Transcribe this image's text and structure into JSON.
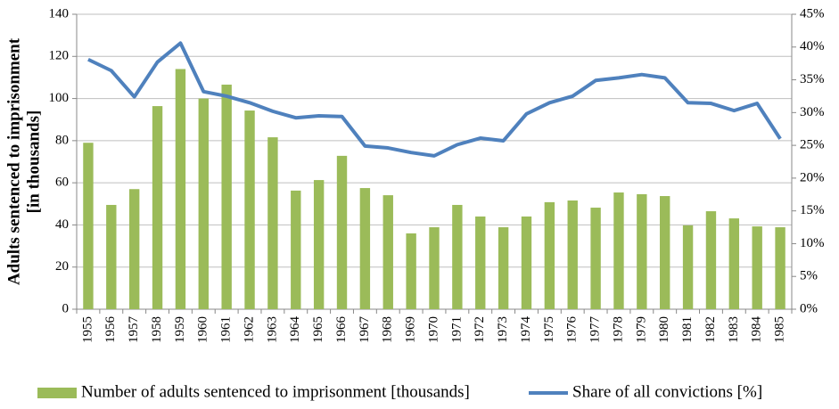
{
  "chart_data": {
    "type": "bar_line",
    "ylabel": [
      "Adults sentenced to imprisonment",
      "[in thousands]"
    ],
    "categories": [
      "1955",
      "1956",
      "1957",
      "1958",
      "1959",
      "1960",
      "1961",
      "1962",
      "1963",
      "1964",
      "1965",
      "1966",
      "1967",
      "1968",
      "1969",
      "1970",
      "1971",
      "1972",
      "1973",
      "1974",
      "1975",
      "1976",
      "1977",
      "1978",
      "1979",
      "1980",
      "1981",
      "1982",
      "1983",
      "1984",
      "1985"
    ],
    "series": [
      {
        "name": "Number of adults sentenced to imprisonment [thousands]",
        "type": "bar",
        "color": "#9bbb59",
        "values": [
          79,
          49.5,
          57,
          96.4,
          114,
          100,
          106.6,
          94.3,
          81.6,
          56.3,
          61.3,
          72.8,
          57.5,
          54.1,
          36,
          38.9,
          49.5,
          44,
          38.9,
          44,
          50.8,
          51.6,
          48.2,
          55.4,
          54.6,
          53.7,
          39.8,
          46.5,
          43.1,
          39.3,
          38.9
        ]
      },
      {
        "name": "Share of all convictions [%]",
        "type": "line",
        "axis": "y2",
        "color": "#4f81bd",
        "values": [
          38.1,
          36.4,
          32.4,
          37.7,
          40.6,
          33.2,
          32.5,
          31.5,
          30.2,
          29.2,
          29.5,
          29.4,
          24.9,
          24.6,
          23.9,
          23.4,
          25.1,
          26.1,
          25.7,
          29.8,
          31.5,
          32.5,
          34.9,
          35.3,
          35.8,
          35.3,
          31.5,
          31.4,
          30.3,
          31.4,
          26.0
        ]
      }
    ],
    "ylim": [
      0,
      140
    ],
    "yticks": [
      0,
      20,
      40,
      60,
      80,
      100,
      120,
      140
    ],
    "y2lim": [
      0,
      45
    ],
    "y2ticks": [
      {
        "value": 0,
        "label": "0%"
      },
      {
        "value": 5,
        "label": "5%"
      },
      {
        "value": 10,
        "label": "10%"
      },
      {
        "value": 15,
        "label": "15%"
      },
      {
        "value": 20,
        "label": "20%"
      },
      {
        "value": 25,
        "label": "25%"
      },
      {
        "value": 30,
        "label": "30%"
      },
      {
        "value": 35,
        "label": "35%"
      },
      {
        "value": 40,
        "label": "40%"
      },
      {
        "value": 45,
        "label": "45%"
      }
    ],
    "grid": true,
    "legend": "bottom"
  }
}
